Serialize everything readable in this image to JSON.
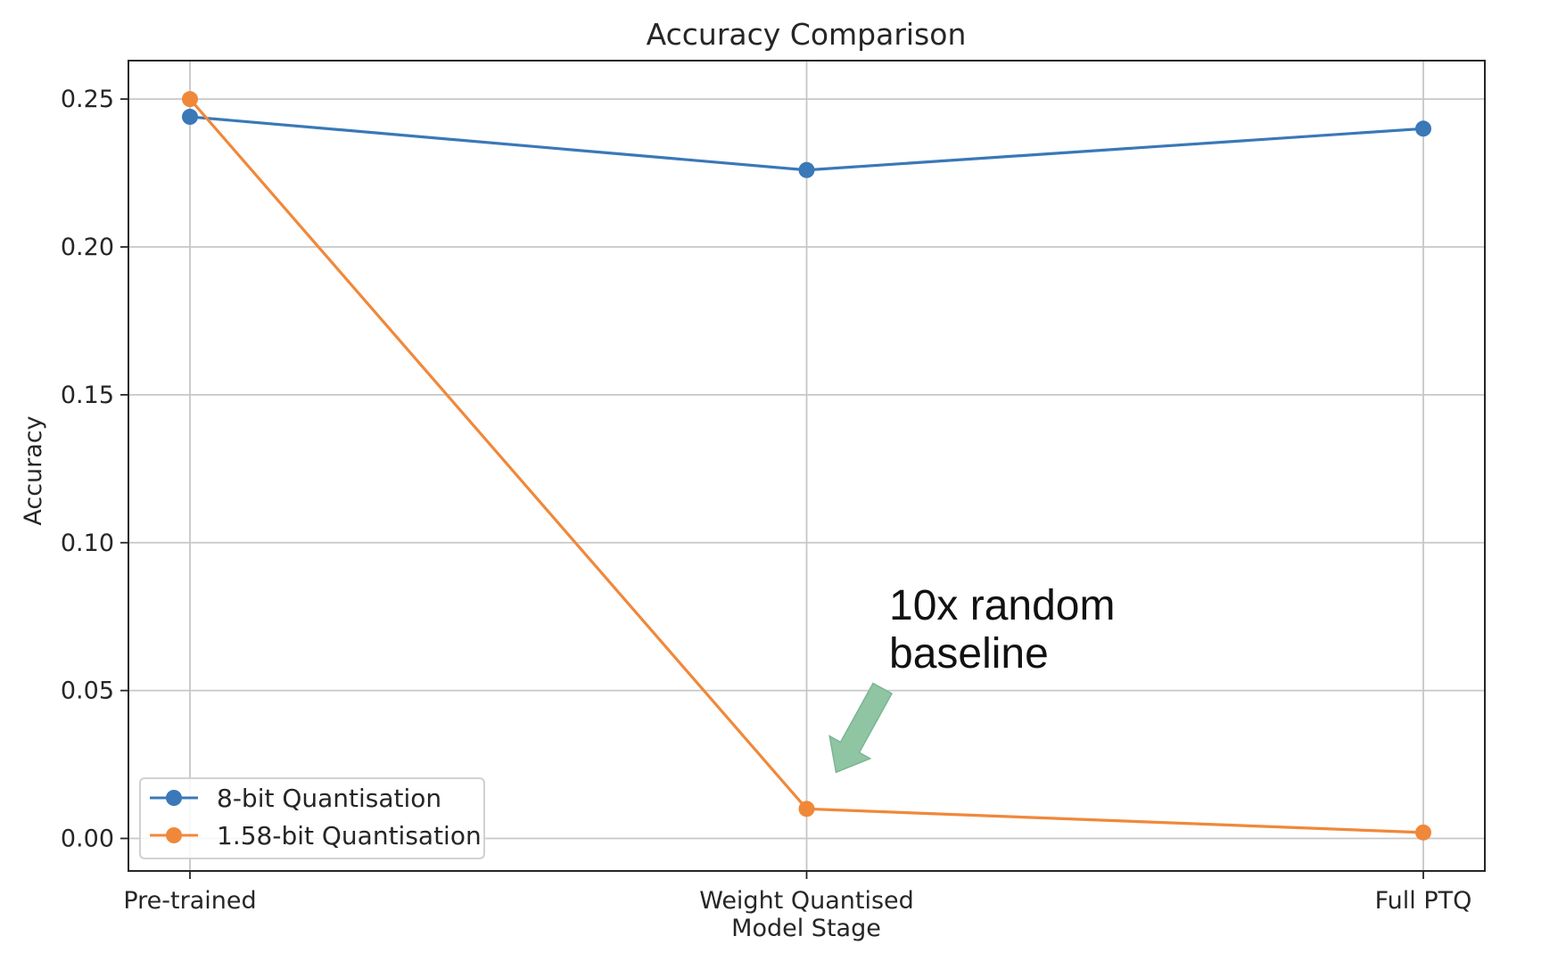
{
  "chart_data": {
    "type": "line",
    "title": "Accuracy Comparison",
    "xlabel": "Model Stage",
    "ylabel": "Accuracy",
    "categories": [
      "Pre-trained",
      "Weight Quantised",
      "Full PTQ"
    ],
    "ylim": [
      -0.011,
      0.263
    ],
    "yticks": [
      0.0,
      0.05,
      0.1,
      0.15,
      0.2,
      0.25
    ],
    "ytick_labels": [
      "0.00",
      "0.05",
      "0.10",
      "0.15",
      "0.20",
      "0.25"
    ],
    "grid": true,
    "legend_position": "lower-left",
    "series": [
      {
        "name": "8-bit Quantisation",
        "color": "#3a78b8",
        "values": [
          0.244,
          0.226,
          0.24
        ]
      },
      {
        "name": "1.58-bit Quantisation",
        "color": "#f0883a",
        "values": [
          0.25,
          0.01,
          0.002
        ]
      }
    ],
    "annotation": {
      "lines": [
        "10x random",
        "baseline"
      ],
      "target_category": "Weight Quantised",
      "target_value": 0.01,
      "arrow_color": "#8fc5a3"
    }
  }
}
